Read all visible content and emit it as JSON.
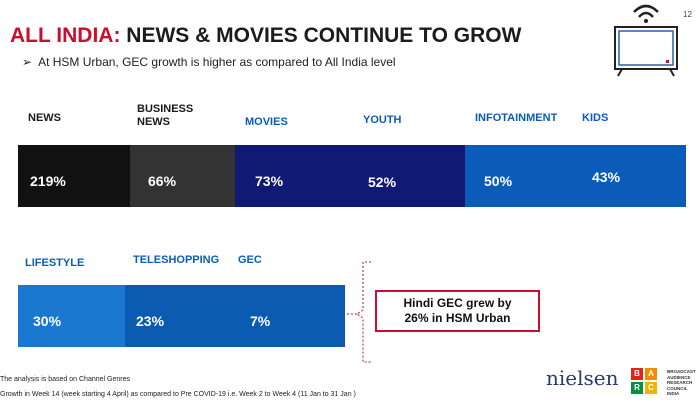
{
  "header": {
    "title_highlight": "ALL INDIA:",
    "title_rest": "NEWS & MOVIES CONTINUE TO GROW",
    "subtitle": "At HSM Urban, GEC growth is higher as compared to All India level",
    "page_number": "12"
  },
  "row1": [
    {
      "label": "NEWS",
      "value": "219%"
    },
    {
      "label": "BUSINESS NEWS",
      "value": "66%"
    },
    {
      "label": "MOVIES",
      "value": "73%"
    },
    {
      "label": "YOUTH",
      "value": "52%"
    },
    {
      "label": "INFOTAINMENT",
      "value": "50%"
    },
    {
      "label": "KIDS",
      "value": "43%"
    }
  ],
  "row2": [
    {
      "label": "LIFESTYLE",
      "value": "30%"
    },
    {
      "label": "TELESHOPPING",
      "value": "23%"
    },
    {
      "label": "GEC",
      "value": "7%"
    }
  ],
  "callout": "Hindi GEC grew by 26% in HSM Urban",
  "footnotes": [
    "The analysis is based on Channel Genres",
    "Growth in Week 14 (week starting 4 April) as compared to Pre COVID-19 i.e. Week 2 to Week 4 (11 Jan to 31 Jan )"
  ],
  "logos": {
    "nielsen": "nielsen",
    "barc_letters": [
      "B",
      "A",
      "R",
      "C"
    ],
    "barc_text": "BROADCAST AUDIENCE RESEARCH COUNCIL INDIA"
  }
}
